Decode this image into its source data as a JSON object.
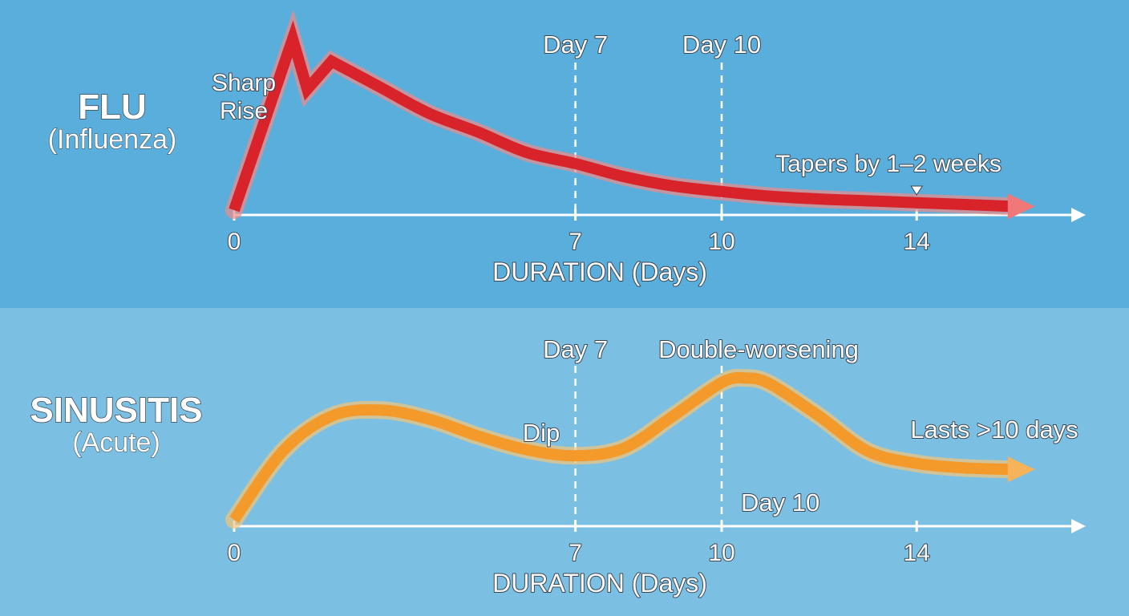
{
  "chart_data": [
    {
      "type": "line",
      "condition": "FLU",
      "subtitle": "(Influenza)",
      "xlabel": "DURATION (Days)",
      "xlim": [
        0,
        16
      ],
      "ylim": [
        0,
        1
      ],
      "x_ticks": [
        0,
        7,
        10,
        14
      ],
      "reference_lines": [
        {
          "x": 7,
          "label": "Day 7"
        },
        {
          "x": 10,
          "label": "Day 10"
        }
      ],
      "series": [
        {
          "x": [
            0,
            1.2,
            1.5,
            2.0,
            3,
            4,
            5,
            6,
            7,
            8,
            9,
            10,
            11,
            12,
            13,
            14,
            15,
            16
          ],
          "y": [
            0.0,
            0.92,
            0.65,
            0.8,
            0.66,
            0.52,
            0.42,
            0.31,
            0.25,
            0.18,
            0.13,
            0.1,
            0.075,
            0.06,
            0.05,
            0.04,
            0.03,
            0.02
          ],
          "color": "#d8232a"
        }
      ],
      "annotations": [
        {
          "text": [
            "Sharp",
            "Rise"
          ],
          "x": 0.4
        },
        {
          "text": "Tapers by 1–2 weeks",
          "x": 14
        }
      ],
      "tick_labels": [
        "0",
        "7",
        "10",
        "14"
      ]
    },
    {
      "type": "line",
      "condition": "SINUSITIS",
      "subtitle": "(Acute)",
      "xlabel": "DURATION (Days)",
      "xlim": [
        0,
        16
      ],
      "ylim": [
        0,
        1
      ],
      "x_ticks": [
        0,
        7,
        10,
        14
      ],
      "reference_lines": [
        {
          "x": 7,
          "label": "Day 7"
        },
        {
          "x": 10,
          "label": "Day 10"
        }
      ],
      "series": [
        {
          "x": [
            0,
            1,
            2,
            3,
            4,
            5,
            6,
            7,
            8,
            9,
            10,
            10.5,
            11,
            12,
            13,
            14,
            15,
            16
          ],
          "y": [
            0.0,
            0.45,
            0.68,
            0.72,
            0.66,
            0.55,
            0.46,
            0.42,
            0.47,
            0.68,
            0.9,
            0.93,
            0.89,
            0.68,
            0.45,
            0.37,
            0.34,
            0.33
          ],
          "color": "#f39a2b"
        }
      ],
      "annotations": [
        {
          "text": "Double-worsening",
          "x": 10
        },
        {
          "text": "Dip",
          "x": 7
        },
        {
          "text": "Lasts >10 days",
          "x": 15
        },
        {
          "text": "Day 10",
          "x": 10
        }
      ],
      "tick_labels": [
        "0",
        "7",
        "10",
        "14"
      ]
    }
  ]
}
